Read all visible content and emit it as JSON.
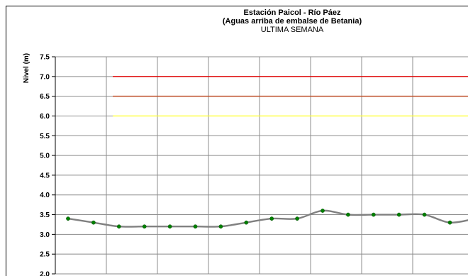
{
  "chart_data": {
    "type": "line",
    "title_line1": "Estación Paicol  - Río Páez",
    "title_line2": "(Aguas arriba de embalse de Betania)",
    "subtitle": "ULTIMA SEMANA",
    "ylabel": "Nivel  (m)",
    "ylim": [
      2.0,
      7.5
    ],
    "yticks": [
      "7.5",
      "7.0",
      "6.5",
      "6.0",
      "5.5",
      "5.0",
      "4.5",
      "4.0",
      "3.5",
      "3.0",
      "2.5",
      "2.0"
    ],
    "ytick_values": [
      7.5,
      7.0,
      6.5,
      6.0,
      5.5,
      5.0,
      4.5,
      4.0,
      3.5,
      3.0,
      2.5,
      2.0
    ],
    "grid": true,
    "thresholds": [
      {
        "value": 7.0,
        "color": "#e00000"
      },
      {
        "value": 6.5,
        "color": "#c0502a"
      },
      {
        "value": 6.0,
        "color": "#ffff33"
      }
    ],
    "series": [
      {
        "values": [
          3.4,
          3.3,
          3.2,
          3.2,
          3.2,
          3.2,
          3.2,
          3.3,
          3.4,
          3.4,
          3.6,
          3.5,
          3.5,
          3.5,
          3.5,
          3.3,
          3.4
        ],
        "line_color": "#808080",
        "marker_color": "#008000"
      }
    ]
  }
}
